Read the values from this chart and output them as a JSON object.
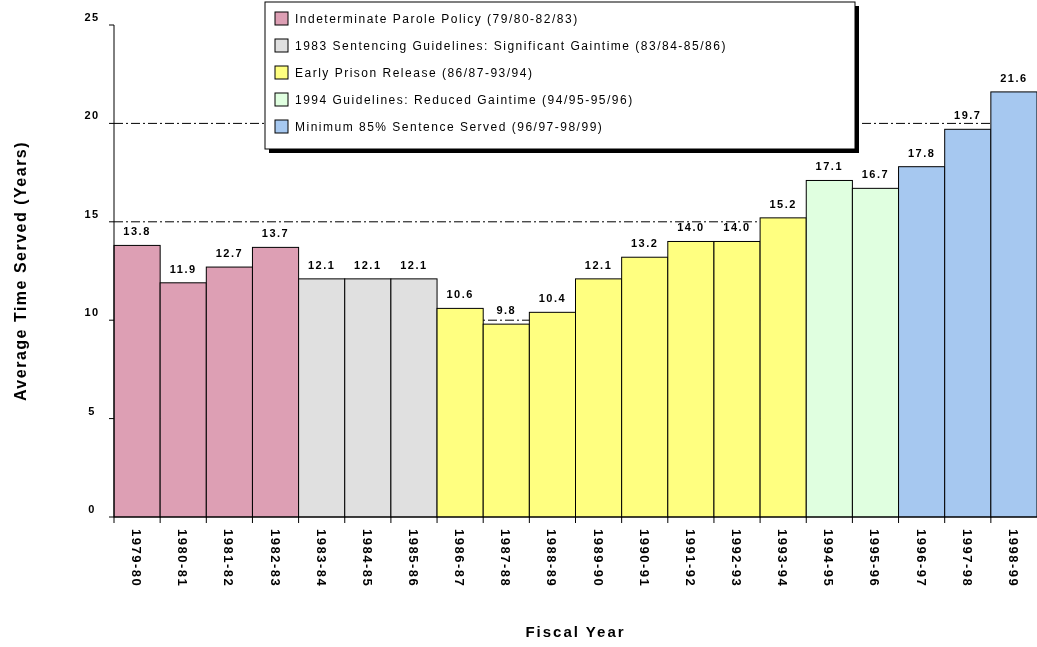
{
  "chart_data": {
    "type": "bar",
    "xlabel": "Fiscal Year",
    "ylabel": "Average Time Served (Years)",
    "categories": [
      "1979-80",
      "1980-81",
      "1981-82",
      "1982-83",
      "1983-84",
      "1984-85",
      "1985-86",
      "1986-87",
      "1987-88",
      "1988-89",
      "1989-90",
      "1990-91",
      "1991-92",
      "1992-93",
      "1993-94",
      "1994-95",
      "1995-96",
      "1996-97",
      "1997-98",
      "1998-99"
    ],
    "series": [
      {
        "name": "Indeterminate Parole Policy (79/80-82/83)",
        "color": "#dd9fb4",
        "values": [
          13.8,
          11.9,
          12.7,
          13.7,
          null,
          null,
          null,
          null,
          null,
          null,
          null,
          null,
          null,
          null,
          null,
          null,
          null,
          null,
          null,
          null
        ],
        "value_labels": [
          "13.8",
          "11.9",
          "12.7",
          "13.7",
          null,
          null,
          null,
          null,
          null,
          null,
          null,
          null,
          null,
          null,
          null,
          null,
          null,
          null,
          null,
          null
        ]
      },
      {
        "name": "1983 Sentencing Guidelines: Significant Gaintime (83/84-85/86)",
        "color": "#e0e0e0",
        "values": [
          null,
          null,
          null,
          null,
          12.1,
          12.1,
          12.1,
          null,
          null,
          null,
          null,
          null,
          null,
          null,
          null,
          null,
          null,
          null,
          null,
          null
        ],
        "value_labels": [
          null,
          null,
          null,
          null,
          "12.1",
          "12.1",
          "12.1",
          null,
          null,
          null,
          null,
          null,
          null,
          null,
          null,
          null,
          null,
          null,
          null,
          null
        ]
      },
      {
        "name": "Early Prison Release (86/87-93/94)",
        "color": "#ffff80",
        "values": [
          null,
          null,
          null,
          null,
          null,
          null,
          null,
          10.6,
          9.8,
          10.4,
          12.1,
          13.2,
          14.0,
          14.0,
          15.2,
          null,
          null,
          null,
          null,
          null
        ],
        "value_labels": [
          null,
          null,
          null,
          null,
          null,
          null,
          null,
          "10.6",
          "9.8",
          "10.4",
          "12.1",
          "13.2",
          "14.0",
          "14.0",
          "15.2",
          null,
          null,
          null,
          null,
          null
        ]
      },
      {
        "name": "1994 Guidelines: Reduced Gaintime (94/95-95/96)",
        "color": "#e0ffe0",
        "values": [
          null,
          null,
          null,
          null,
          null,
          null,
          null,
          null,
          null,
          null,
          null,
          null,
          null,
          null,
          null,
          17.1,
          16.7,
          null,
          null,
          null
        ],
        "value_labels": [
          null,
          null,
          null,
          null,
          null,
          null,
          null,
          null,
          null,
          null,
          null,
          null,
          null,
          null,
          null,
          "17.1",
          "16.7",
          null,
          null,
          null
        ]
      },
      {
        "name": "Minimum 85% Sentence Served (96/97-98/99)",
        "color": "#a6c8f0",
        "values": [
          null,
          null,
          null,
          null,
          null,
          null,
          null,
          null,
          null,
          null,
          null,
          null,
          null,
          null,
          null,
          null,
          null,
          17.8,
          19.7,
          21.6
        ],
        "value_labels": [
          null,
          null,
          null,
          null,
          null,
          null,
          null,
          null,
          null,
          null,
          null,
          null,
          null,
          null,
          null,
          null,
          null,
          "17.8",
          "19.7",
          "21.6"
        ]
      }
    ],
    "ylim": [
      0,
      25
    ],
    "yticks": [
      0,
      5,
      10,
      15,
      20,
      25
    ],
    "grid": "y",
    "line_style": "dashed",
    "legend": "top"
  }
}
